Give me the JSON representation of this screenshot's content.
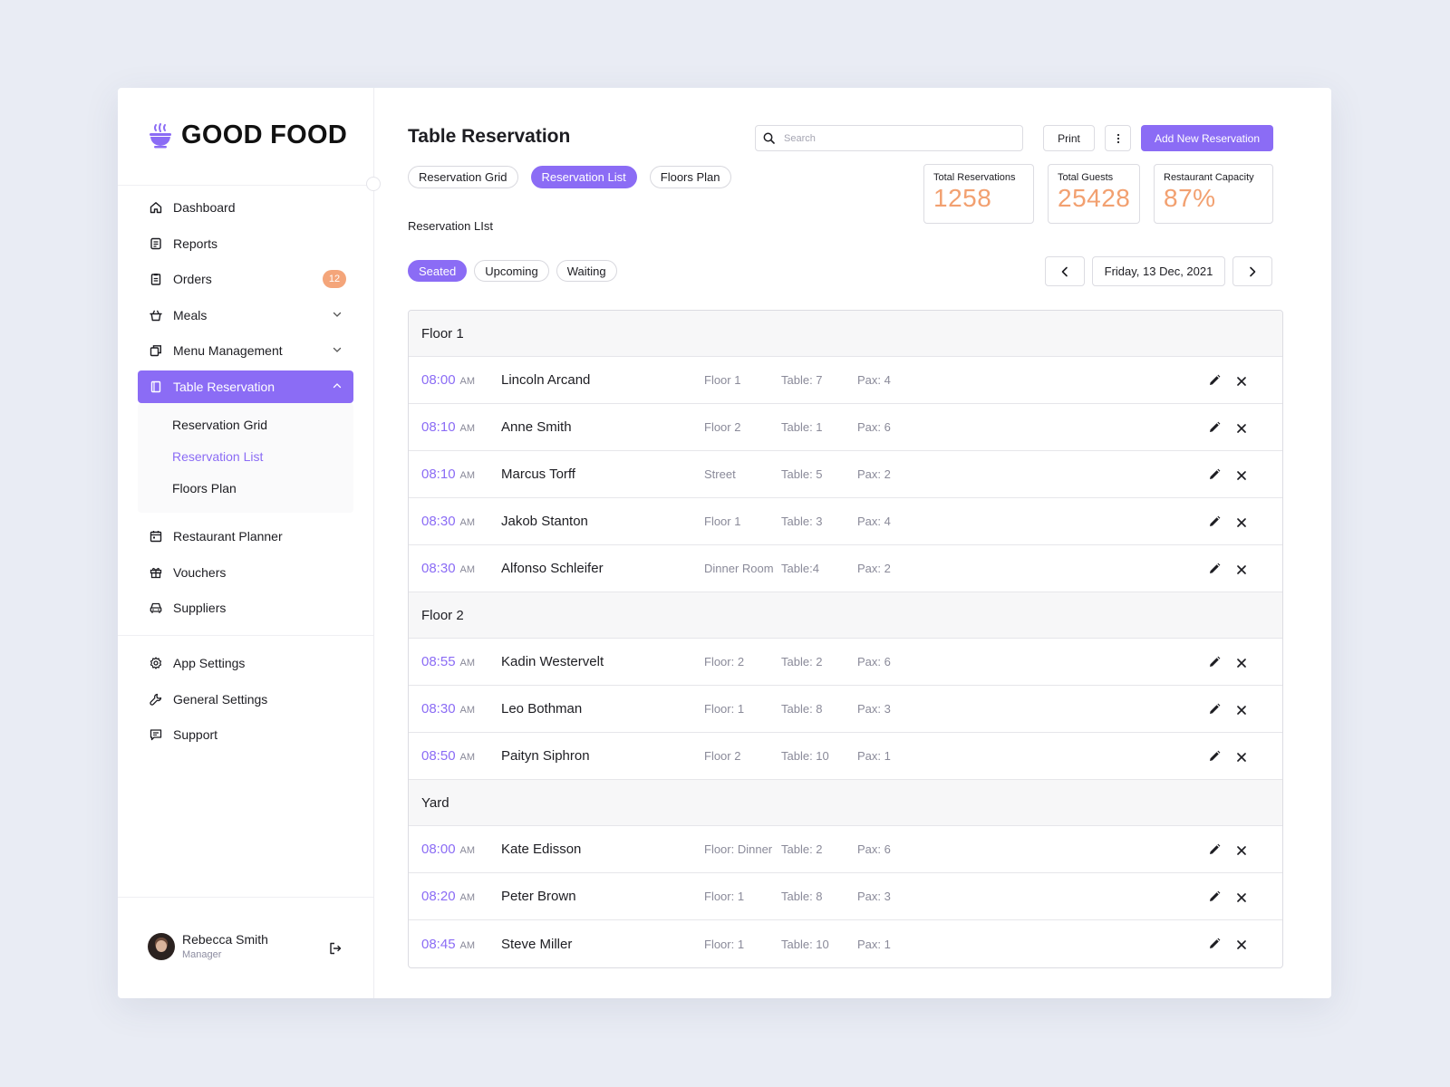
{
  "app": {
    "name": "GOOD FOOD"
  },
  "sidebar": {
    "items": [
      {
        "label": "Dashboard",
        "icon": "home-icon"
      },
      {
        "label": "Reports",
        "icon": "reports-icon"
      },
      {
        "label": "Orders",
        "icon": "clipboard-icon",
        "badge": "12"
      },
      {
        "label": "Meals",
        "icon": "basket-icon"
      },
      {
        "label": "Menu Management",
        "icon": "copy-icon"
      },
      {
        "label": "Table Reservation",
        "icon": "notebook-icon"
      }
    ],
    "submenu": [
      "Reservation Grid",
      "Reservation List",
      "Floors Plan"
    ],
    "items2": [
      {
        "label": "Restaurant Planner",
        "icon": "calendar-icon"
      },
      {
        "label": "Vouchers",
        "icon": "gift-icon"
      },
      {
        "label": "Suppliers",
        "icon": "car-icon"
      }
    ],
    "settings": [
      {
        "label": "App Settings",
        "icon": "gear-icon"
      },
      {
        "label": "General Settings",
        "icon": "wrench-icon"
      },
      {
        "label": "Support",
        "icon": "chat-icon"
      }
    ],
    "user": {
      "name": "Rebecca Smith",
      "role": "Manager"
    }
  },
  "header": {
    "title": "Table Reservation",
    "search_placeholder": "Search",
    "print_label": "Print",
    "add_label": "Add New Reservation"
  },
  "view_tabs": [
    "Reservation Grid",
    "Reservation List",
    "Floors Plan"
  ],
  "stats": [
    {
      "label": "Total Reservations",
      "value": "1258"
    },
    {
      "label": "Total Guests",
      "value": "25428"
    },
    {
      "label": "Restaurant Capacity",
      "value": "87%"
    }
  ],
  "section_label": "Reservation LIst",
  "status_tabs": [
    "Seated",
    "Upcoming",
    "Waiting"
  ],
  "date": "Friday, 13 Dec, 2021",
  "colors": {
    "accent": "#8b6cf5",
    "stat": "#f2a070",
    "badge": "#f4a57a"
  },
  "groups": [
    {
      "name": "Floor 1",
      "rows": [
        {
          "time": "08:00",
          "ampm": "AM",
          "name": "Lincoln Arcand",
          "floor": "Floor 1",
          "table": "Table: 7",
          "pax": "Pax: 4"
        },
        {
          "time": "08:10",
          "ampm": "AM",
          "name": "Anne Smith",
          "floor": "Floor  2",
          "table": "Table: 1",
          "pax": "Pax: 6"
        },
        {
          "time": "08:10",
          "ampm": "AM",
          "name": "Marcus Torff",
          "floor": "Street",
          "table": "Table: 5",
          "pax": "Pax: 2"
        },
        {
          "time": "08:30",
          "ampm": "AM",
          "name": "Jakob Stanton",
          "floor": "Floor 1",
          "table": "Table: 3",
          "pax": "Pax: 4"
        },
        {
          "time": "08:30",
          "ampm": "AM",
          "name": "Alfonso Schleifer",
          "floor": "Dinner Room",
          "table": "Table:4",
          "pax": "Pax: 2"
        }
      ]
    },
    {
      "name": "Floor 2",
      "rows": [
        {
          "time": "08:55",
          "ampm": "AM",
          "name": "Kadin Westervelt",
          "floor": "Floor: 2",
          "table": "Table: 2",
          "pax": "Pax: 6"
        },
        {
          "time": "08:30",
          "ampm": "AM",
          "name": "Leo Bothman",
          "floor": "Floor: 1",
          "table": "Table: 8",
          "pax": "Pax: 3"
        },
        {
          "time": "08:50",
          "ampm": "AM",
          "name": "Paityn Siphron",
          "floor": "Floor 2",
          "table": "Table: 10",
          "pax": "Pax: 1"
        }
      ]
    },
    {
      "name": "Yard",
      "rows": [
        {
          "time": "08:00",
          "ampm": "AM",
          "name": "Kate Edisson",
          "floor": "Floor: Dinner",
          "table": "Table: 2",
          "pax": "Pax: 6"
        },
        {
          "time": "08:20",
          "ampm": "AM",
          "name": "Peter Brown",
          "floor": "Floor: 1",
          "table": "Table: 8",
          "pax": "Pax: 3"
        },
        {
          "time": "08:45",
          "ampm": "AM",
          "name": "Steve Miller",
          "floor": "Floor: 1",
          "table": "Table: 10",
          "pax": "Pax: 1"
        }
      ]
    }
  ]
}
